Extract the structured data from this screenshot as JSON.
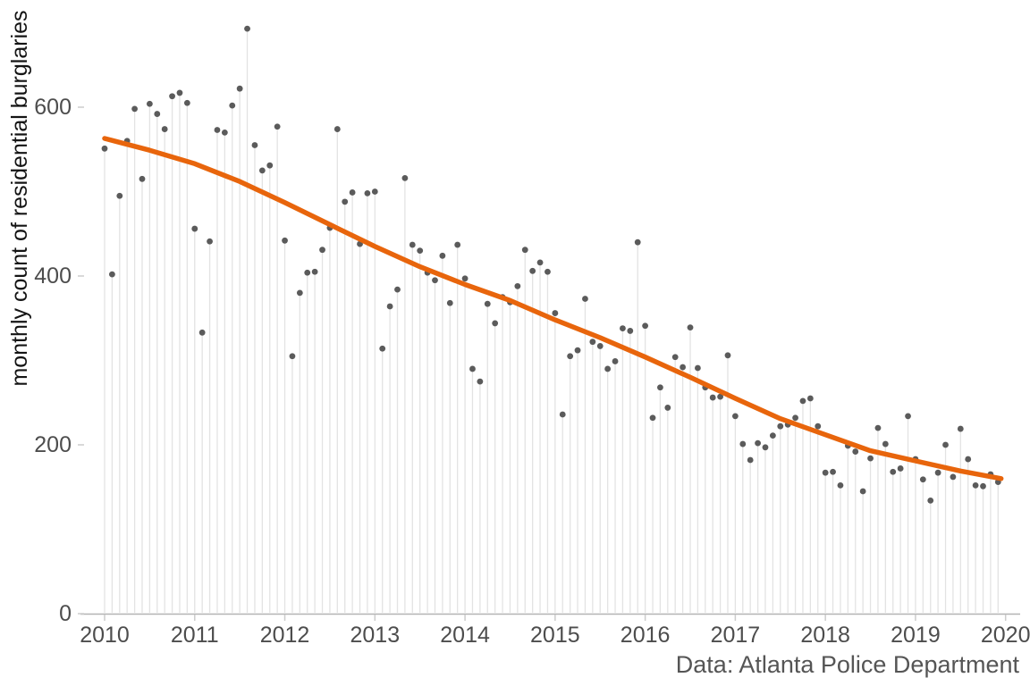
{
  "figure": {
    "y_axis_title": "monthly count of residential burglaries",
    "caption": "Data: Atlanta Police Department"
  },
  "colors": {
    "background": "#ffffff",
    "point": "#5b5b5b",
    "stem": "#e3e3e3",
    "trend": "#e8650c",
    "axis_line": "#b3b3b3",
    "tick_mark": "#cccccc",
    "tick_label": "#4d4d4d",
    "axis_title": "#141414",
    "caption": "#555555"
  },
  "chart_data": {
    "type": "scatter",
    "subtype": "lollipop-with-smooth-trend",
    "title": "",
    "xlabel": "",
    "ylabel": "monthly count of residential burglaries",
    "caption": "Data: Atlanta Police Department",
    "grid": "none",
    "legend": "none",
    "x_tick_labels": [
      "2010",
      "2011",
      "2012",
      "2013",
      "2014",
      "2015",
      "2016",
      "2017",
      "2018",
      "2019",
      "2020"
    ],
    "y_tick_labels": [
      "0",
      "200",
      "400",
      "600"
    ],
    "y_ticks": [
      0,
      200,
      400,
      600
    ],
    "ylim": [
      0,
      710
    ],
    "x_range_years": [
      2010,
      2020
    ],
    "series": [
      {
        "name": "monthly-burglary-counts",
        "style": "point-with-stem",
        "start": "2010-01",
        "frequency": "monthly",
        "values_by_year": {
          "2010": [
            551,
            402,
            495,
            560,
            598,
            515,
            604,
            592,
            574,
            613,
            617,
            605
          ],
          "2011": [
            456,
            333,
            441,
            573,
            570,
            602,
            622,
            693,
            555,
            525,
            531,
            577
          ],
          "2012": [
            442,
            305,
            380,
            404,
            405,
            431,
            457,
            574,
            488,
            499,
            438,
            498
          ],
          "2013": [
            500,
            314,
            364,
            384,
            516,
            437,
            430,
            404,
            395,
            424,
            368,
            437
          ],
          "2014": [
            397,
            290,
            275,
            367,
            344,
            375,
            369,
            388,
            431,
            406,
            416,
            405
          ],
          "2015": [
            356,
            236,
            305,
            312,
            373,
            322,
            317,
            290,
            299,
            338,
            335,
            440
          ],
          "2016": [
            341,
            232,
            268,
            244,
            304,
            292,
            339,
            291,
            268,
            256,
            257,
            306
          ],
          "2017": [
            234,
            201,
            182,
            202,
            197,
            211,
            222,
            224,
            232,
            252,
            255,
            222
          ],
          "2018": [
            167,
            168,
            152,
            199,
            192,
            145,
            184,
            220,
            201,
            168,
            172,
            234
          ],
          "2019": [
            183,
            159,
            134,
            167,
            200,
            162,
            219,
            183,
            152,
            151,
            165,
            156
          ]
        }
      },
      {
        "name": "trend-line",
        "style": "smooth-line",
        "points": [
          [
            2010.0,
            563
          ],
          [
            2010.5,
            549
          ],
          [
            2011.0,
            533
          ],
          [
            2011.5,
            512
          ],
          [
            2012.0,
            487
          ],
          [
            2012.5,
            461
          ],
          [
            2013.0,
            435
          ],
          [
            2013.5,
            411
          ],
          [
            2014.0,
            390
          ],
          [
            2014.5,
            371
          ],
          [
            2015.0,
            348
          ],
          [
            2015.5,
            327
          ],
          [
            2016.0,
            304
          ],
          [
            2016.5,
            280
          ],
          [
            2017.0,
            255
          ],
          [
            2017.5,
            231
          ],
          [
            2018.0,
            212
          ],
          [
            2018.5,
            193
          ],
          [
            2019.0,
            181
          ],
          [
            2019.5,
            169
          ],
          [
            2019.95,
            160
          ]
        ]
      }
    ]
  }
}
